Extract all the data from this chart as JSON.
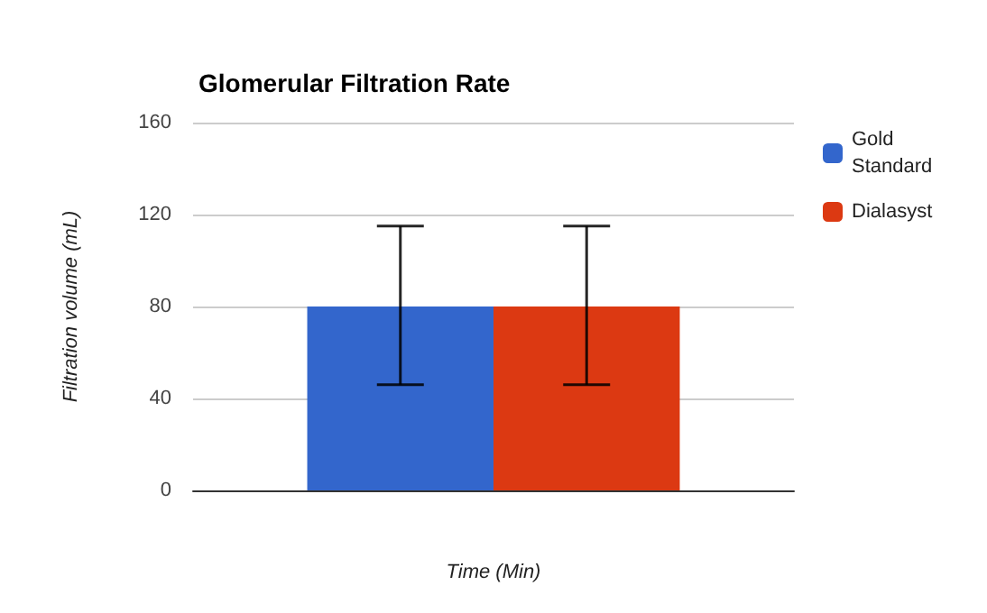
{
  "chart_data": {
    "type": "bar",
    "title": "Glomerular Filtration Rate",
    "xlabel": "Time (Min)",
    "ylabel": "Filtration volume (mL)",
    "categories": [
      null
    ],
    "series": [
      {
        "name": "Gold Standard",
        "color": "#3366cc",
        "values": [
          80
        ],
        "errors": [
          [
            46,
            115
          ]
        ]
      },
      {
        "name": "Dialasyst",
        "color": "#dc3912",
        "values": [
          80
        ],
        "errors": [
          [
            46,
            115
          ]
        ]
      }
    ],
    "ylim": [
      0,
      160
    ],
    "yticks": [
      0,
      40,
      80,
      120,
      160
    ],
    "grid": "y",
    "legend": "top right"
  }
}
